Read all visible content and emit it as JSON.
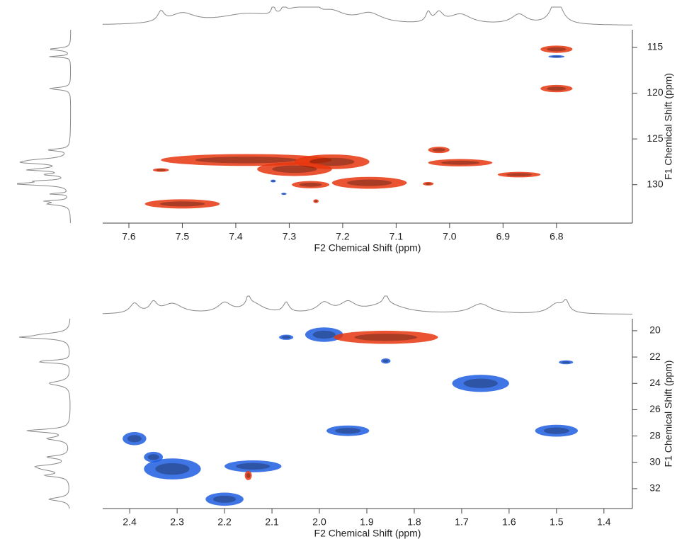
{
  "chart_data": [
    {
      "type": "hsqc",
      "x_label": "F2 Chemical Shift (ppm)",
      "y_label": "F1 Chemical Shift (ppm)",
      "xlim": [
        7.649,
        6.658
      ],
      "ylim": [
        113.07,
        134.2
      ],
      "xticks": [
        7.6,
        7.5,
        7.4,
        7.3,
        7.2,
        7.1,
        {
          "value": 7,
          "label": "7.0"
        },
        6.9,
        6.8
      ],
      "yticks": [
        115,
        120,
        125,
        130
      ],
      "series": [
        {
          "color": "#e8360e",
          "x": [
            6.8,
            6.8,
            7.38,
            7.22,
            7.29,
            7.15,
            7.26,
            7.5,
            7.54,
            7.02,
            6.98,
            6.87,
            7.04,
            7.25
          ],
          "y": [
            115.2,
            119.5,
            127.3,
            127.5,
            128.3,
            129.8,
            130,
            132.1,
            128.4,
            126.2,
            127.6,
            128.9,
            129.9,
            131.8
          ],
          "x_width": [
            0.06,
            0.06,
            0.32,
            0.14,
            0.14,
            0.14,
            0.07,
            0.14,
            0.03,
            0.04,
            0.12,
            0.08,
            0.02,
            0.01
          ],
          "y_width": [
            0.8,
            0.8,
            1.3,
            1.6,
            1.5,
            1.3,
            0.8,
            1.0,
            0.4,
            0.7,
            0.8,
            0.6,
            0.4,
            0.4
          ]
        },
        {
          "color": "#1f5de0",
          "x": [
            6.8,
            7.33,
            7.31
          ],
          "y": [
            116,
            129.6,
            131
          ],
          "x_width": [
            0.03,
            0.01,
            0.01
          ],
          "y_width": [
            0.3,
            0.3,
            0.2
          ]
        }
      ]
    },
    {
      "type": "hsqc",
      "x_label": "F2 Chemical Shift (ppm)",
      "y_label": "F1 Chemical Shift (ppm)",
      "xlim": [
        2.457,
        1.34
      ],
      "ylim": [
        19.09,
        33.51
      ],
      "xticks": [
        2.4,
        2.3,
        2.2,
        2.1,
        {
          "value": 2,
          "label": "2.0"
        },
        1.9,
        1.8,
        1.7,
        1.6,
        1.5,
        1.4
      ],
      "yticks": [
        20,
        22,
        24,
        26,
        28,
        30,
        32
      ],
      "series": [
        {
          "color": "#1f5de0",
          "x": [
            2.07,
            1.99,
            1.86,
            1.48,
            1.66,
            1.94,
            1.5,
            2.39,
            2.31,
            2.35,
            2.14,
            2.2
          ],
          "y": [
            20.5,
            20.3,
            22.3,
            22.4,
            24,
            27.6,
            27.6,
            28.2,
            30.5,
            29.6,
            30.3,
            32.8
          ],
          "x_width": [
            0.03,
            0.08,
            0.02,
            0.03,
            0.12,
            0.09,
            0.09,
            0.05,
            0.12,
            0.04,
            0.12,
            0.08
          ],
          "y_width": [
            0.4,
            1.1,
            0.4,
            0.3,
            1.3,
            0.8,
            0.9,
            1.0,
            1.6,
            0.8,
            0.9,
            1.0
          ]
        },
        {
          "color": "#e8360e",
          "x": [
            1.86,
            2.15
          ],
          "y": [
            20.5,
            31
          ],
          "x_width": [
            0.22,
            0.015
          ],
          "y_width": [
            1.0,
            0.7
          ]
        }
      ]
    }
  ]
}
